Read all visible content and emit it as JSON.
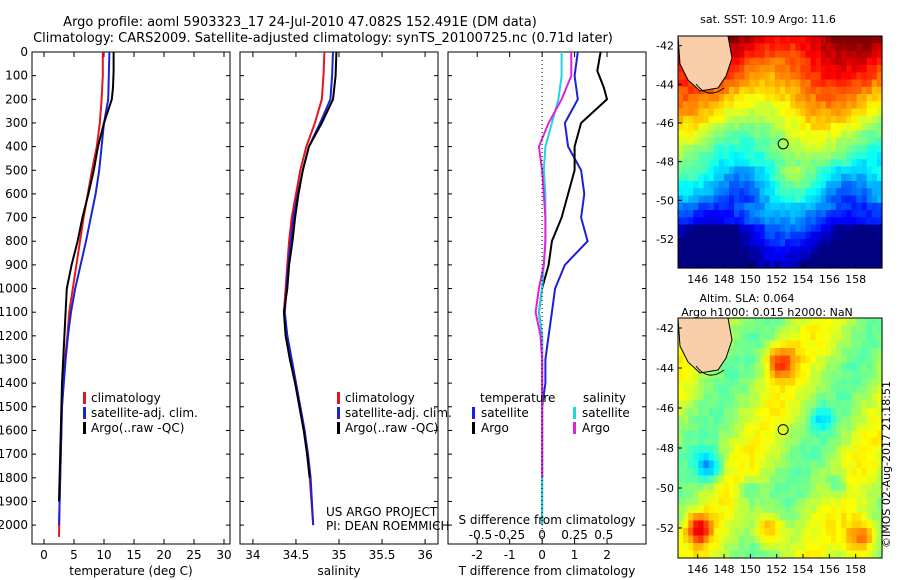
{
  "header": {
    "line1": "Argo profile: aoml 5903323_17 24-Jul-2010 47.082S 152.491E (DM data)",
    "line2": "Climatology: CARS2009. Satellite-adjusted climatology: synTS_20100725.nc (0.71d later)"
  },
  "colors": {
    "climatology": "#e8141c",
    "satellite": "#1a22d6",
    "argo": "#000000",
    "salinity_satellite": "#22d4e0",
    "salinity_argo": "#e020e0"
  },
  "chart_data": [
    {
      "type": "line",
      "name": "temperature-profile",
      "xlabel": "temperature (deg C)",
      "xlim": [
        -2,
        31
      ],
      "xticks": [
        0,
        5,
        10,
        15,
        20,
        25,
        30
      ],
      "ylim": [
        2080,
        0
      ],
      "yticks": [
        0,
        100,
        200,
        300,
        400,
        500,
        600,
        700,
        800,
        900,
        1000,
        1100,
        1200,
        1300,
        1400,
        1500,
        1600,
        1700,
        1800,
        1900,
        2000
      ],
      "legend": [
        "climatology",
        "satellite-adj. clim.",
        "Argo(..raw -QC)"
      ],
      "series": [
        {
          "name": "climatology",
          "x": [
            9.8,
            9.8,
            9.6,
            9.3,
            8.8,
            8.0,
            7.3,
            6.6,
            6.0,
            5.4,
            4.8,
            4.2,
            3.9,
            3.5,
            3.2,
            3.0,
            2.9,
            2.8,
            2.7,
            2.6,
            2.5
          ],
          "y": [
            0,
            100,
            200,
            300,
            400,
            500,
            600,
            700,
            800,
            900,
            1000,
            1100,
            1200,
            1300,
            1400,
            1500,
            1600,
            1700,
            1800,
            1900,
            2050
          ]
        },
        {
          "name": "satellite-adj. clim.",
          "x": [
            10.9,
            10.8,
            10.7,
            10.0,
            9.6,
            9.2,
            8.6,
            7.8,
            7.0,
            6.1,
            5.2,
            4.5,
            4.0,
            3.6,
            3.3,
            3.0,
            2.9,
            2.8,
            2.7,
            2.6,
            2.5
          ],
          "y": [
            0,
            100,
            200,
            300,
            400,
            500,
            600,
            700,
            800,
            900,
            1000,
            1100,
            1200,
            1300,
            1400,
            1500,
            1600,
            1700,
            1800,
            1900,
            2000
          ]
        },
        {
          "name": "Argo(..raw -QC)",
          "x": [
            11.6,
            11.6,
            11.5,
            11.3,
            10.0,
            9.0,
            8.3,
            7.4,
            6.4,
            5.6,
            4.6,
            3.8,
            3.6,
            3.4,
            3.2,
            3.0,
            2.9,
            2.8,
            2.7,
            2.6,
            2.5
          ],
          "y": [
            0,
            80,
            150,
            200,
            300,
            400,
            500,
            600,
            700,
            800,
            900,
            1000,
            1100,
            1200,
            1300,
            1400,
            1500,
            1600,
            1700,
            1800,
            1900
          ]
        }
      ]
    },
    {
      "type": "line",
      "name": "salinity-profile",
      "xlabel": "salinity",
      "xlim": [
        33.85,
        36.15
      ],
      "xticks": [
        34,
        34.5,
        35,
        35.5,
        36
      ],
      "ylim": [
        2080,
        0
      ],
      "legend": [
        "climatology",
        "satellite-adj. clim.",
        "Argo(..raw -QC)"
      ],
      "annotation": [
        "US ARGO PROJECT",
        "PI: DEAN ROEMMICH"
      ],
      "series": [
        {
          "name": "climatology",
          "x": [
            34.83,
            34.82,
            34.8,
            34.72,
            34.62,
            34.55,
            34.5,
            34.45,
            34.42,
            34.4,
            34.38,
            34.36,
            34.4,
            34.45,
            34.5,
            34.55,
            34.6,
            34.63,
            34.66,
            34.7
          ],
          "y": [
            0,
            100,
            200,
            300,
            400,
            500,
            600,
            700,
            800,
            900,
            1000,
            1100,
            1200,
            1300,
            1400,
            1500,
            1600,
            1700,
            1800,
            2000
          ]
        },
        {
          "name": "satellite-adj. clim.",
          "x": [
            34.93,
            34.92,
            34.9,
            34.78,
            34.65,
            34.58,
            34.52,
            34.47,
            34.44,
            34.41,
            34.39,
            34.37,
            34.4,
            34.45,
            34.5,
            34.55,
            34.6,
            34.64,
            34.67,
            34.7
          ],
          "y": [
            0,
            100,
            200,
            300,
            400,
            500,
            600,
            700,
            800,
            900,
            1000,
            1100,
            1200,
            1300,
            1400,
            1500,
            1600,
            1700,
            1800,
            2000
          ]
        },
        {
          "name": "Argo(..raw -QC)",
          "x": [
            34.97,
            34.96,
            34.93,
            34.8,
            34.65,
            34.58,
            34.53,
            34.49,
            34.46,
            34.42,
            34.4,
            34.36,
            34.38,
            34.43,
            34.49,
            34.54,
            34.59,
            34.63,
            34.66
          ],
          "y": [
            0,
            100,
            200,
            300,
            400,
            500,
            600,
            700,
            800,
            900,
            1000,
            1100,
            1200,
            1300,
            1400,
            1500,
            1600,
            1700,
            1800
          ]
        }
      ]
    },
    {
      "type": "line",
      "name": "difference-profile",
      "xlabel": "T difference from climatology",
      "xlabel_top": "S difference from climatology",
      "xlim": [
        -2.9,
        3.2
      ],
      "xticks": [
        -2,
        -1,
        0,
        1,
        2
      ],
      "sticks_label": [
        "-0.5",
        "-0.25",
        "0",
        "0.25",
        "0.5"
      ],
      "ylim": [
        2080,
        0
      ],
      "legend_groups": {
        "temperature": [
          "satellite",
          "Argo"
        ],
        "salinity": [
          "satellite",
          "Argo"
        ]
      },
      "series": [
        {
          "name": "temperature satellite",
          "x": [
            1.1,
            1.0,
            1.1,
            0.7,
            0.8,
            1.2,
            1.3,
            1.2,
            1.4,
            0.7,
            0.4,
            0.3,
            0.2,
            0.1,
            0.1,
            0.0,
            0.0,
            0.0,
            0.0,
            0.0
          ],
          "y": [
            0,
            100,
            200,
            300,
            400,
            500,
            600,
            700,
            800,
            900,
            1000,
            1100,
            1200,
            1300,
            1400,
            1500,
            1600,
            1700,
            1800,
            2000
          ]
        },
        {
          "name": "temperature Argo",
          "x": [
            1.8,
            1.7,
            1.9,
            2.0,
            1.2,
            1.0,
            1.0,
            0.8,
            0.6,
            0.3,
            0.2,
            0.0,
            -0.1,
            0.0,
            0.0,
            0.0,
            0.0,
            0.0,
            0.0
          ],
          "y": [
            0,
            80,
            150,
            200,
            300,
            400,
            500,
            600,
            700,
            800,
            900,
            1000,
            1100,
            1200,
            1300,
            1400,
            1500,
            1600,
            1800
          ]
        },
        {
          "name": "salinity satellite",
          "x": [
            0.6,
            0.6,
            0.5,
            0.3,
            0.1,
            0.05,
            0.1,
            0.1,
            0.1,
            0.05,
            0.0,
            -0.1,
            0.0,
            0.0,
            0.0,
            0.0,
            0.0,
            0.0,
            0.0
          ],
          "y": [
            0,
            100,
            200,
            300,
            400,
            500,
            600,
            700,
            800,
            900,
            1000,
            1100,
            1200,
            1300,
            1400,
            1500,
            1600,
            1700,
            2000
          ]
        },
        {
          "name": "salinity Argo",
          "x": [
            0.9,
            0.9,
            0.6,
            0.2,
            -0.1,
            0.0,
            0.05,
            0.1,
            0.1,
            0.05,
            -0.1,
            -0.2,
            -0.05,
            0.0,
            0.0,
            0.0,
            0.0,
            0.0
          ],
          "y": [
            0,
            100,
            200,
            300,
            400,
            500,
            600,
            700,
            800,
            900,
            1000,
            1100,
            1200,
            1300,
            1400,
            1500,
            1600,
            1800
          ]
        }
      ]
    },
    {
      "type": "heatmap",
      "name": "sst-map",
      "title": "sat. SST: 10.9  Argo: 11.6",
      "xlim": [
        144.5,
        160
      ],
      "xticks": [
        146,
        148,
        150,
        152,
        154,
        156,
        158
      ],
      "ylim": [
        -53.5,
        -41.5
      ],
      "yticks": [
        -42,
        -44,
        -46,
        -48,
        -50,
        -52
      ],
      "marker": {
        "lon": 152.49,
        "lat": -47.08
      }
    },
    {
      "type": "heatmap",
      "name": "sla-map",
      "title": "Altim. SLA: 0.064",
      "subtitle": "Argo h1000: 0.015  h2000: NaN",
      "xlim": [
        144.5,
        160
      ],
      "xticks": [
        146,
        148,
        150,
        152,
        154,
        156,
        158
      ],
      "ylim": [
        -53.5,
        -41.5
      ],
      "yticks": [
        -42,
        -44,
        -46,
        -48,
        -50,
        -52
      ],
      "marker": {
        "lon": 152.49,
        "lat": -47.08
      }
    }
  ],
  "footer": {
    "stamp": "©IMOS 02-Aug-2017 21:18:51"
  }
}
